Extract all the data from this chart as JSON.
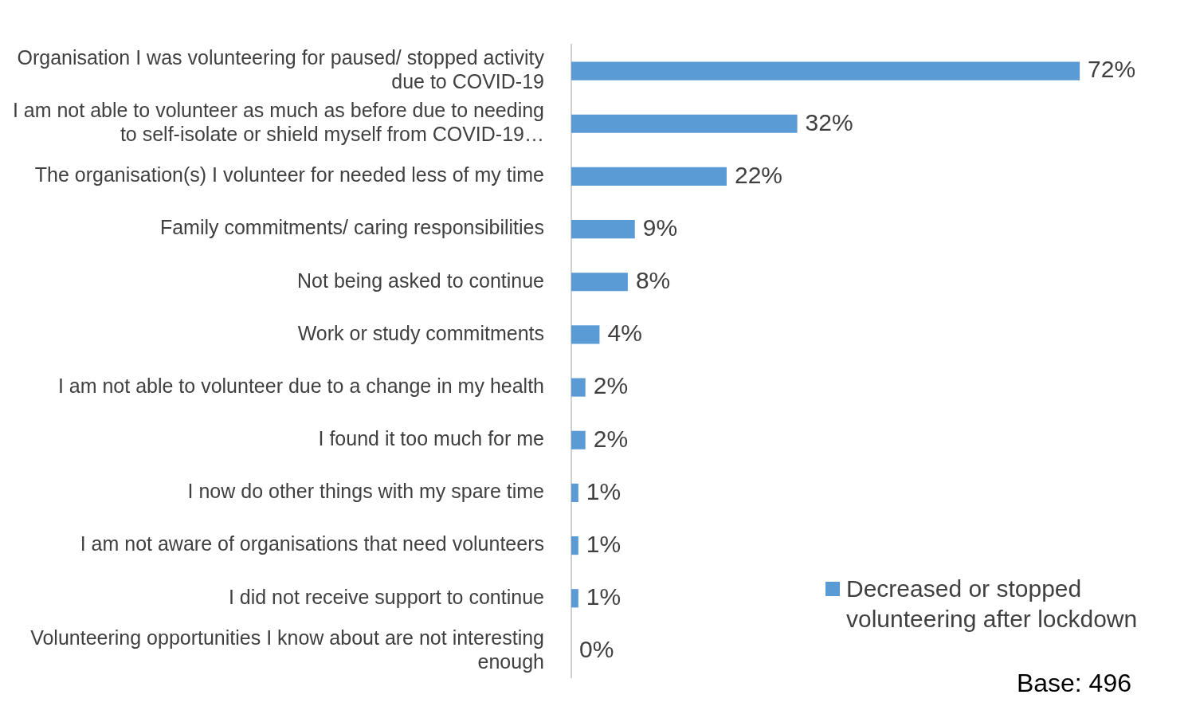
{
  "chart_data": {
    "type": "bar",
    "orientation": "horizontal",
    "categories": [
      "Organisation I was volunteering for paused/ stopped activity due to COVID-19",
      "I am not able to volunteer as much as before due to needing to self-isolate or shield myself from COVID-19…",
      "The organisation(s) I volunteer for needed less of my time",
      "Family commitments/ caring responsibilities",
      "Not being asked to continue",
      "Work or study commitments",
      "I am not able to volunteer due to a change in my health",
      "I found it too much for me",
      "I now do other things with my spare time",
      "I am not aware of organisations that need volunteers",
      "I did not receive support to continue",
      "Volunteering opportunities I know about are not interesting enough"
    ],
    "series": [
      {
        "name": "Decreased or stopped volunteering after lockdown",
        "color": "#5b9bd5",
        "values": [
          72,
          32,
          22,
          9,
          8,
          4,
          2,
          2,
          1,
          1,
          1,
          0
        ],
        "value_labels": [
          "72%",
          "32%",
          "22%",
          "9%",
          "8%",
          "4%",
          "2%",
          "2%",
          "1%",
          "1%",
          "1%",
          "0%"
        ]
      }
    ],
    "legend": "bottom right",
    "grid": false,
    "tick_labels": "y",
    "annotations": [
      "Base: 496"
    ]
  }
}
